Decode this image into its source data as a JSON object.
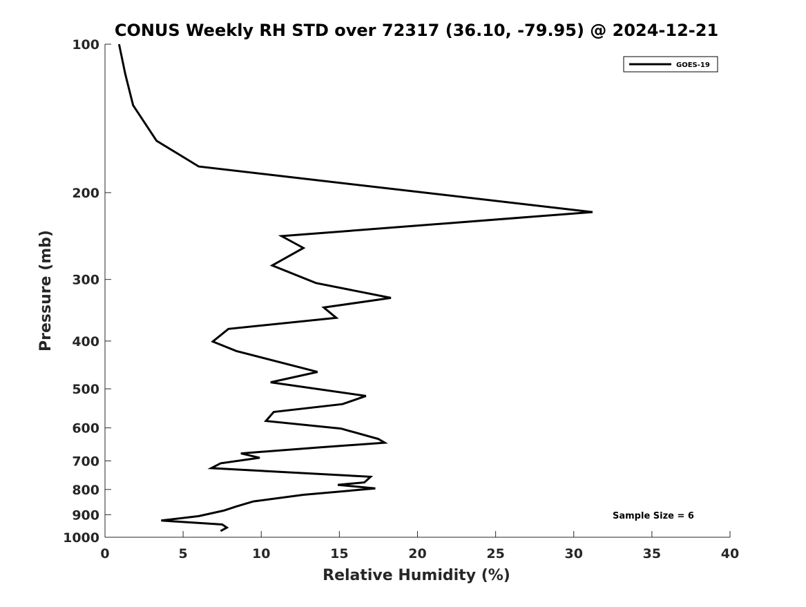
{
  "chart_data": {
    "type": "line",
    "title": "CONUS Weekly RH STD over 72317 (36.10, -79.95) @ 2024-12-21",
    "xlabel": "Relative Humidity (%)",
    "ylabel": "Pressure (mb)",
    "xlim": [
      0,
      40
    ],
    "ylim": [
      100,
      1000
    ],
    "y_scale": "log",
    "y_reversed": true,
    "grid": false,
    "legend_position": "top-right",
    "x_ticks": [
      0,
      5,
      10,
      15,
      20,
      25,
      30,
      35,
      40
    ],
    "x_tick_labels": [
      "0",
      "5",
      "10",
      "15",
      "20",
      "25",
      "30",
      "35",
      "40"
    ],
    "y_ticks": [
      100,
      200,
      300,
      400,
      500,
      600,
      700,
      800,
      900,
      1000
    ],
    "y_tick_labels": [
      "100",
      "200",
      "300",
      "400",
      "500",
      "600",
      "700",
      "800",
      "900",
      "1000"
    ],
    "series": [
      {
        "name": "GOES-19",
        "color": "#000000",
        "x": [
          0.9,
          1.3,
          1.8,
          3.3,
          6.0,
          31.2,
          11.3,
          12.7,
          10.7,
          13.5,
          18.3,
          14.0,
          14.8,
          7.9,
          6.9,
          8.4,
          13.6,
          10.6,
          16.7,
          15.2,
          10.8,
          10.3,
          15.1,
          17.5,
          17.9,
          13.8,
          8.7,
          9.9,
          7.4,
          6.8,
          17.0,
          16.6,
          14.9,
          17.3,
          12.7,
          9.5,
          8.4,
          7.6,
          6.0,
          3.6,
          7.5,
          7.8,
          7.4
        ],
        "y": [
          100,
          115,
          133,
          157,
          177,
          219,
          245,
          259,
          281,
          305,
          327,
          342,
          359,
          378,
          401,
          419,
          462,
          485,
          517,
          537,
          557,
          581,
          602,
          632,
          643,
          657,
          676,
          690,
          708,
          724,
          754,
          774,
          783,
          796,
          820,
          846,
          866,
          883,
          906,
          925,
          942,
          956,
          971
        ]
      }
    ],
    "annotation": "Sample Size = 6"
  }
}
